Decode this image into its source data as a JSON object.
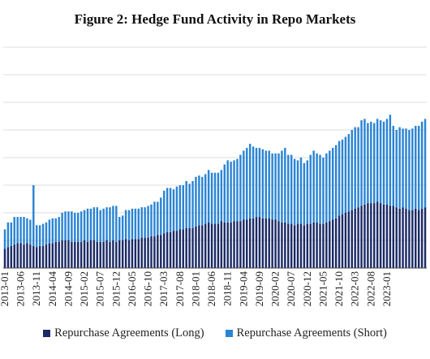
{
  "title": "Figure 2: Hedge Fund Activity in Repo Markets",
  "colors": {
    "long": "#1b2a66",
    "short": "#2a84d4",
    "grid": "#dddddd"
  },
  "chart_data": {
    "type": "bar",
    "stacked": true,
    "title": "Figure 2: Hedge Fund Activity in Repo Markets",
    "xlabel": "",
    "ylabel": "",
    "grid": true,
    "legend": "bottom",
    "x_tick_labels": [
      "2013-01",
      "2013-06",
      "2013-11",
      "2014-04",
      "2014-09",
      "2015-02",
      "2015-07",
      "2015-12",
      "2016-05",
      "2016-10",
      "2017-03",
      "2017-08",
      "2018-01",
      "2018-06",
      "2018-11",
      "2019-04",
      "2019-09",
      "2020-02",
      "2020-07",
      "2020-12",
      "2021-05",
      "2021-10",
      "2022-03",
      "2022-08",
      "2023-01"
    ],
    "start_month": "2013-01",
    "ylim": [
      0,
      8
    ],
    "series": [
      {
        "name": "Repurchase Agreements (Long)",
        "values": [
          0.7,
          0.75,
          0.8,
          0.85,
          0.9,
          0.9,
          0.85,
          0.9,
          0.85,
          0.8,
          0.75,
          0.8,
          0.8,
          0.85,
          0.9,
          0.9,
          0.95,
          0.95,
          1.0,
          1.0,
          1.0,
          0.95,
          0.95,
          0.95,
          0.95,
          1.0,
          0.95,
          1.0,
          1.0,
          0.95,
          0.95,
          0.95,
          1.0,
          0.95,
          1.0,
          0.95,
          1.0,
          1.0,
          1.05,
          1.0,
          1.05,
          1.05,
          1.05,
          1.1,
          1.1,
          1.1,
          1.15,
          1.15,
          1.2,
          1.2,
          1.25,
          1.3,
          1.3,
          1.35,
          1.35,
          1.4,
          1.4,
          1.45,
          1.45,
          1.45,
          1.5,
          1.55,
          1.55,
          1.6,
          1.65,
          1.6,
          1.6,
          1.6,
          1.7,
          1.65,
          1.65,
          1.65,
          1.7,
          1.7,
          1.7,
          1.75,
          1.75,
          1.8,
          1.8,
          1.85,
          1.85,
          1.8,
          1.8,
          1.8,
          1.75,
          1.75,
          1.7,
          1.65,
          1.65,
          1.6,
          1.6,
          1.55,
          1.6,
          1.6,
          1.55,
          1.6,
          1.6,
          1.65,
          1.65,
          1.6,
          1.6,
          1.65,
          1.7,
          1.75,
          1.8,
          1.9,
          1.95,
          2.0,
          2.05,
          2.1,
          2.15,
          2.2,
          2.25,
          2.3,
          2.35,
          2.35,
          2.35,
          2.4,
          2.35,
          2.3,
          2.3,
          2.25,
          2.25,
          2.2,
          2.15,
          2.2,
          2.15,
          2.1,
          2.1,
          2.15,
          2.1,
          2.15,
          2.2
        ]
      },
      {
        "name": "Repurchase Agreements (Short)",
        "values": [
          0.7,
          0.9,
          0.85,
          1.0,
          0.95,
          0.95,
          1.0,
          0.9,
          0.9,
          2.2,
          0.8,
          0.75,
          0.8,
          0.8,
          0.85,
          0.9,
          0.85,
          0.9,
          1.0,
          1.05,
          1.05,
          1.1,
          1.05,
          1.05,
          1.1,
          1.1,
          1.2,
          1.15,
          1.2,
          1.25,
          1.15,
          1.2,
          1.2,
          1.25,
          1.25,
          1.3,
          0.85,
          0.9,
          1.05,
          1.1,
          1.1,
          1.1,
          1.1,
          1.1,
          1.1,
          1.15,
          1.15,
          1.25,
          1.2,
          1.35,
          1.55,
          1.6,
          1.6,
          1.5,
          1.6,
          1.6,
          1.6,
          1.7,
          1.6,
          1.7,
          1.8,
          1.8,
          1.75,
          1.8,
          1.9,
          1.85,
          1.85,
          1.85,
          1.85,
          2.1,
          2.25,
          2.2,
          2.2,
          2.25,
          2.4,
          2.5,
          2.6,
          2.7,
          2.6,
          2.5,
          2.5,
          2.5,
          2.45,
          2.45,
          2.4,
          2.4,
          2.45,
          2.6,
          2.7,
          2.5,
          2.5,
          2.4,
          2.3,
          2.4,
          2.25,
          2.3,
          2.5,
          2.6,
          2.5,
          2.5,
          2.4,
          2.5,
          2.55,
          2.6,
          2.65,
          2.7,
          2.7,
          2.75,
          2.8,
          2.9,
          2.95,
          2.9,
          3.1,
          3.1,
          2.9,
          2.95,
          2.9,
          3.0,
          3.0,
          3.0,
          3.1,
          3.3,
          2.9,
          2.8,
          2.95,
          2.85,
          2.9,
          2.9,
          2.95,
          3.0,
          3.05,
          3.15,
          3.2,
          3.25
        ]
      }
    ]
  }
}
